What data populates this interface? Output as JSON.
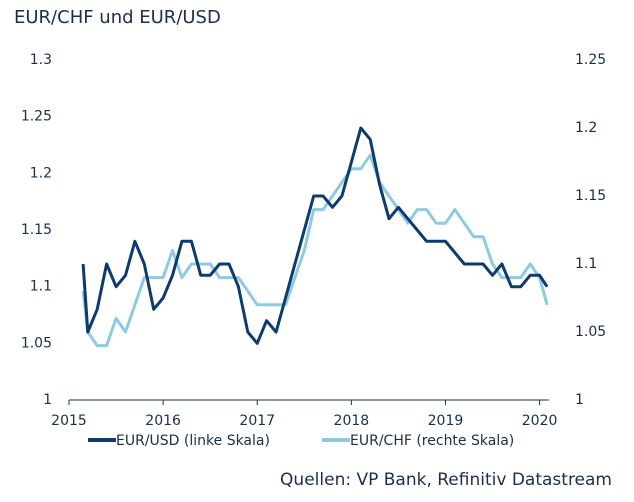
{
  "chart_data": {
    "type": "line",
    "title": "EUR/CHF und EUR/USD",
    "source": "Quellen: VP Bank, Refinitiv Datastream",
    "x": [
      2015.15,
      2015.2,
      2015.3,
      2015.4,
      2015.5,
      2015.6,
      2015.7,
      2015.8,
      2015.9,
      2016.0,
      2016.1,
      2016.2,
      2016.3,
      2016.4,
      2016.5,
      2016.6,
      2016.7,
      2016.8,
      2016.9,
      2017.0,
      2017.1,
      2017.2,
      2017.3,
      2017.4,
      2017.5,
      2017.6,
      2017.7,
      2017.8,
      2017.9,
      2018.0,
      2018.1,
      2018.2,
      2018.3,
      2018.4,
      2018.5,
      2018.6,
      2018.7,
      2018.8,
      2018.9,
      2019.0,
      2019.1,
      2019.2,
      2019.3,
      2019.4,
      2019.5,
      2019.6,
      2019.7,
      2019.8,
      2019.9,
      2020.0,
      2020.08
    ],
    "series": [
      {
        "name": "EUR/USD (linke Skala)",
        "color": "#0d3b6e",
        "axis": "y",
        "values": [
          1.12,
          1.06,
          1.08,
          1.12,
          1.1,
          1.11,
          1.14,
          1.12,
          1.08,
          1.09,
          1.11,
          1.14,
          1.14,
          1.11,
          1.11,
          1.12,
          1.12,
          1.1,
          1.06,
          1.05,
          1.07,
          1.06,
          1.09,
          1.12,
          1.15,
          1.18,
          1.18,
          1.17,
          1.18,
          1.21,
          1.24,
          1.23,
          1.19,
          1.16,
          1.17,
          1.16,
          1.15,
          1.14,
          1.14,
          1.14,
          1.13,
          1.12,
          1.12,
          1.12,
          1.11,
          1.12,
          1.1,
          1.1,
          1.11,
          1.11,
          1.1
        ]
      },
      {
        "name": "EUR/CHF (rechte Skala)",
        "color": "#8fcbe0",
        "axis": "y2",
        "values": [
          1.08,
          1.05,
          1.04,
          1.04,
          1.06,
          1.05,
          1.07,
          1.09,
          1.09,
          1.09,
          1.11,
          1.09,
          1.1,
          1.1,
          1.1,
          1.09,
          1.09,
          1.09,
          1.08,
          1.07,
          1.07,
          1.07,
          1.07,
          1.09,
          1.11,
          1.14,
          1.14,
          1.15,
          1.16,
          1.17,
          1.17,
          1.18,
          1.16,
          1.15,
          1.14,
          1.13,
          1.14,
          1.14,
          1.13,
          1.13,
          1.14,
          1.13,
          1.12,
          1.12,
          1.1,
          1.09,
          1.09,
          1.09,
          1.1,
          1.09,
          1.07
        ]
      }
    ],
    "xlim": [
      2015,
      2020.1
    ],
    "xticks": [
      2015,
      2016,
      2017,
      2018,
      2019,
      2020
    ],
    "ylim": [
      1,
      1.3
    ],
    "yticks": [
      1,
      1.05,
      1.1,
      1.15,
      1.2,
      1.25,
      1.3
    ],
    "y2lim": [
      1,
      1.25
    ],
    "y2ticks": [
      1,
      1.05,
      1.1,
      1.15,
      1.2,
      1.25
    ]
  }
}
